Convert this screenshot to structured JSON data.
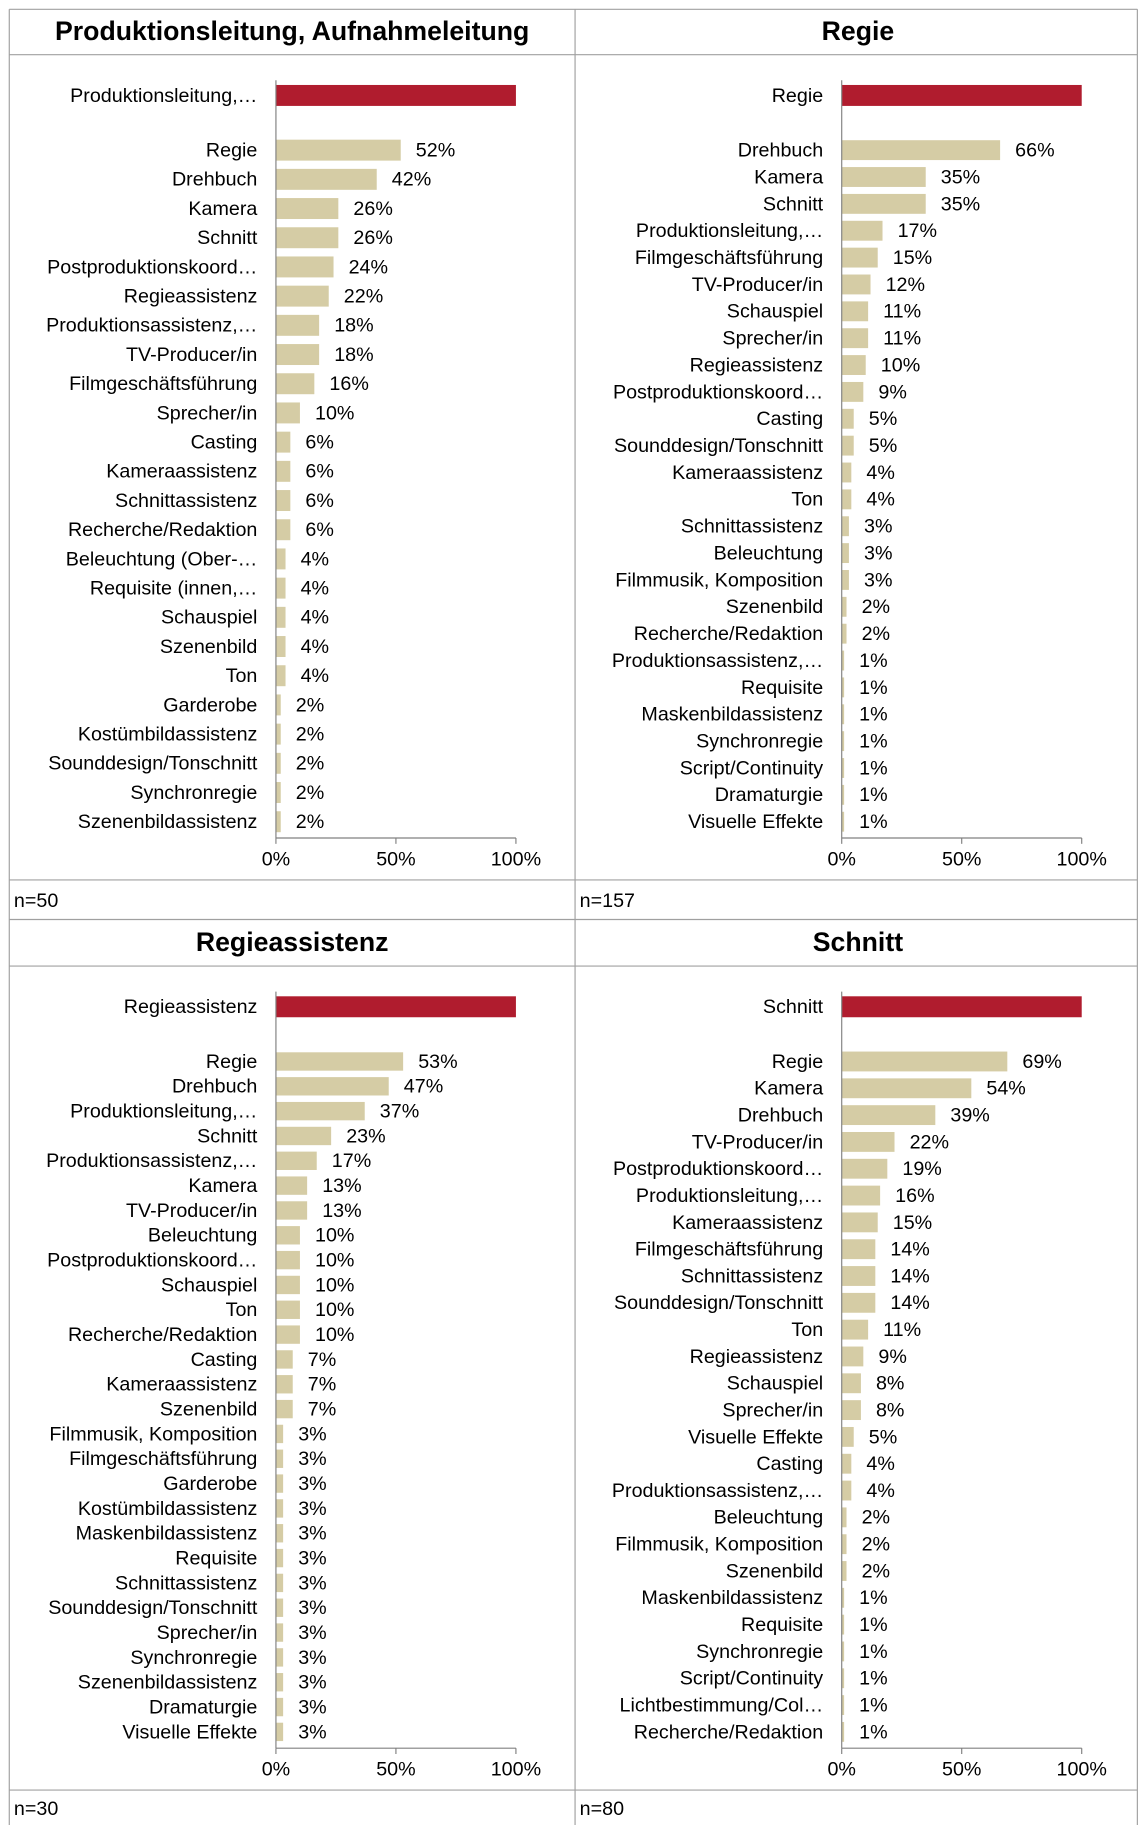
{
  "chart_data": [
    {
      "type": "bar",
      "orientation": "horizontal",
      "title": "Produktionsleitung, Aufnahmeleitung",
      "note": "n=50",
      "categories": [
        "Produktionsleitung,…",
        "Regie",
        "Drehbuch",
        "Kamera",
        "Schnitt",
        "Postproduktionskoord…",
        "Regieassistenz",
        "Produktionsassistenz,…",
        "TV-Producer/in",
        "Filmgeschäftsführung",
        "Sprecher/in",
        "Casting",
        "Kameraassistenz",
        "Schnittassistenz",
        "Recherche/Redaktion",
        "Beleuchtung (Ober-…",
        "Requisite (innen,…",
        "Schauspiel",
        "Szenenbild",
        "Ton",
        "Garderobe",
        "Kostümbildassistenz",
        "Sounddesign/Tonschnitt",
        "Synchronregie",
        "Szenenbildassistenz"
      ],
      "values": [
        100,
        52,
        42,
        26,
        26,
        24,
        22,
        18,
        18,
        16,
        10,
        6,
        6,
        6,
        6,
        4,
        4,
        4,
        4,
        4,
        2,
        2,
        2,
        2,
        2
      ],
      "value_labels": [
        null,
        "52%",
        "42%",
        "26%",
        "26%",
        "24%",
        "22%",
        "18%",
        "18%",
        "16%",
        "10%",
        "6%",
        "6%",
        "6%",
        "6%",
        "4%",
        "4%",
        "4%",
        "4%",
        "4%",
        "2%",
        "2%",
        "2%",
        "2%",
        "2%"
      ],
      "color": "#d5cca5",
      "highlight_color": "#b01c2e",
      "xlim": [
        0,
        100
      ],
      "xticks": [
        {
          "value": 0,
          "label": "0%"
        },
        {
          "value": 50,
          "label": "50%"
        },
        {
          "value": 100,
          "label": "100%"
        }
      ]
    },
    {
      "type": "bar",
      "orientation": "horizontal",
      "title": "Regie",
      "note": "n=157",
      "categories": [
        "Regie",
        "Drehbuch",
        "Kamera",
        "Schnitt",
        "Produktionsleitung,…",
        "Filmgeschäftsführung",
        "TV-Producer/in",
        "Schauspiel",
        "Sprecher/in",
        "Regieassistenz",
        "Postproduktionskoord…",
        "Casting",
        "Sounddesign/Tonschnitt",
        "Kameraassistenz",
        "Ton",
        "Schnittassistenz",
        "Beleuchtung",
        "Filmmusik, Komposition",
        "Szenenbild",
        "Recherche/Redaktion",
        "Produktionsassistenz,…",
        "Requisite",
        "Maskenbildassistenz",
        "Synchronregie",
        "Script/Continuity",
        "Dramaturgie",
        "Visuelle Effekte"
      ],
      "values": [
        100,
        66,
        35,
        35,
        17,
        15,
        12,
        11,
        11,
        10,
        9,
        5,
        5,
        4,
        4,
        3,
        3,
        3,
        2,
        2,
        1,
        1,
        1,
        1,
        1,
        1,
        1
      ],
      "value_labels": [
        null,
        "66%",
        "35%",
        "35%",
        "17%",
        "15%",
        "12%",
        "11%",
        "11%",
        "10%",
        "9%",
        "5%",
        "5%",
        "4%",
        "4%",
        "3%",
        "3%",
        "3%",
        "2%",
        "2%",
        "1%",
        "1%",
        "1%",
        "1%",
        "1%",
        "1%",
        "1%"
      ],
      "color": "#d5cca5",
      "highlight_color": "#b01c2e",
      "xlim": [
        0,
        100
      ],
      "xticks": [
        {
          "value": 0,
          "label": "0%"
        },
        {
          "value": 50,
          "label": "50%"
        },
        {
          "value": 100,
          "label": "100%"
        }
      ]
    },
    {
      "type": "bar",
      "orientation": "horizontal",
      "title": "Regieassistenz",
      "note": "n=30",
      "categories": [
        "Regieassistenz",
        "Regie",
        "Drehbuch",
        "Produktionsleitung,…",
        "Schnitt",
        "Produktionsassistenz,…",
        "Kamera",
        "TV-Producer/in",
        "Beleuchtung",
        "Postproduktionskoord…",
        "Schauspiel",
        "Ton",
        "Recherche/Redaktion",
        "Casting",
        "Kameraassistenz",
        "Szenenbild",
        "Filmmusik, Komposition",
        "Filmgeschäftsführung",
        "Garderobe",
        "Kostümbildassistenz",
        "Maskenbildassistenz",
        "Requisite",
        "Schnittassistenz",
        "Sounddesign/Tonschnitt",
        "Sprecher/in",
        "Synchronregie",
        "Szenenbildassistenz",
        "Dramaturgie",
        "Visuelle Effekte"
      ],
      "values": [
        100,
        53,
        47,
        37,
        23,
        17,
        13,
        13,
        10,
        10,
        10,
        10,
        10,
        7,
        7,
        7,
        3,
        3,
        3,
        3,
        3,
        3,
        3,
        3,
        3,
        3,
        3,
        3,
        3
      ],
      "value_labels": [
        null,
        "53%",
        "47%",
        "37%",
        "23%",
        "17%",
        "13%",
        "13%",
        "10%",
        "10%",
        "10%",
        "10%",
        "10%",
        "7%",
        "7%",
        "7%",
        "3%",
        "3%",
        "3%",
        "3%",
        "3%",
        "3%",
        "3%",
        "3%",
        "3%",
        "3%",
        "3%",
        "3%",
        "3%"
      ],
      "color": "#d5cca5",
      "highlight_color": "#b01c2e",
      "xlim": [
        0,
        100
      ],
      "xticks": [
        {
          "value": 0,
          "label": "0%"
        },
        {
          "value": 50,
          "label": "50%"
        },
        {
          "value": 100,
          "label": "100%"
        }
      ]
    },
    {
      "type": "bar",
      "orientation": "horizontal",
      "title": "Schnitt",
      "note": "n=80",
      "categories": [
        "Schnitt",
        "Regie",
        "Kamera",
        "Drehbuch",
        "TV-Producer/in",
        "Postproduktionskoord…",
        "Produktionsleitung,…",
        "Kameraassistenz",
        "Filmgeschäftsführung",
        "Schnittassistenz",
        "Sounddesign/Tonschnitt",
        "Ton",
        "Regieassistenz",
        "Schauspiel",
        "Sprecher/in",
        "Visuelle Effekte",
        "Casting",
        "Produktionsassistenz,…",
        "Beleuchtung",
        "Filmmusik, Komposition",
        "Szenenbild",
        "Maskenbildassistenz",
        "Requisite",
        "Synchronregie",
        "Script/Continuity",
        "Lichtbestimmung/Col…",
        "Recherche/Redaktion"
      ],
      "values": [
        100,
        69,
        54,
        39,
        22,
        19,
        16,
        15,
        14,
        14,
        14,
        11,
        9,
        8,
        8,
        5,
        4,
        4,
        2,
        2,
        2,
        1,
        1,
        1,
        1,
        1,
        1
      ],
      "value_labels": [
        null,
        "69%",
        "54%",
        "39%",
        "22%",
        "19%",
        "16%",
        "15%",
        "14%",
        "14%",
        "14%",
        "11%",
        "9%",
        "8%",
        "8%",
        "5%",
        "4%",
        "4%",
        "2%",
        "2%",
        "2%",
        "1%",
        "1%",
        "1%",
        "1%",
        "1%",
        "1%"
      ],
      "color": "#d5cca5",
      "highlight_color": "#b01c2e",
      "xlim": [
        0,
        100
      ],
      "xticks": [
        {
          "value": 0,
          "label": "0%"
        },
        {
          "value": 50,
          "label": "50%"
        },
        {
          "value": 100,
          "label": "100%"
        }
      ]
    }
  ]
}
